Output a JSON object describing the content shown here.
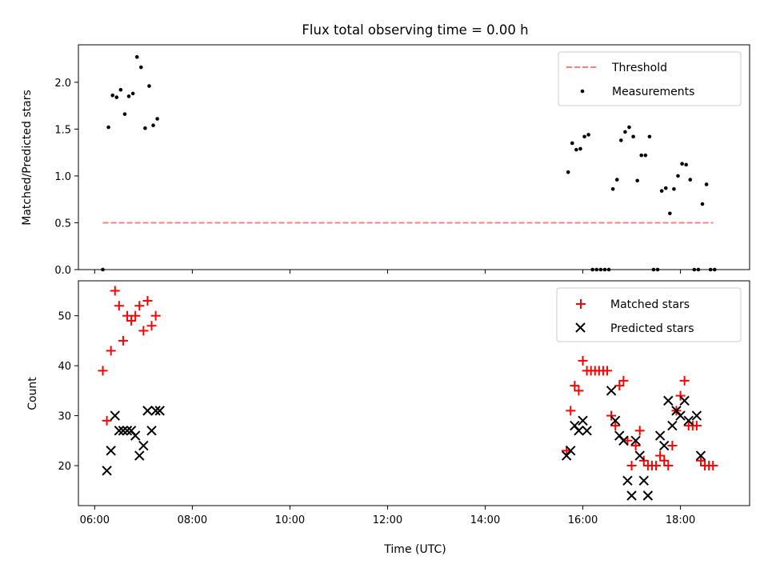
{
  "title": "Flux total observing time = 0.00 h",
  "colors": {
    "threshold": "#ff7f7f",
    "measurements": "#000000",
    "matched": "#ff0000",
    "predicted": "#000000"
  },
  "chart_data": [
    {
      "type": "scatter",
      "title": "Flux total observing time = 0.00 h",
      "xlabel": "",
      "ylabel": "Matched/Predicted stars",
      "xlim": [
        "05:40",
        "19:25"
      ],
      "ylim": [
        0,
        2.4
      ],
      "yticks": [
        0.0,
        0.5,
        1.0,
        1.5,
        2.0
      ],
      "ytick_labels": [
        "0.0",
        "0.5",
        "1.0",
        "1.5",
        "2.0"
      ],
      "legend_position": "top-right",
      "series": [
        {
          "name": "Threshold",
          "style": "dashed-line",
          "points": [
            [
              "06:10",
              0.5
            ],
            [
              "18:40",
              0.5
            ]
          ]
        },
        {
          "name": "Measurements",
          "style": "dot",
          "points": [
            [
              "06:10",
              0.0
            ],
            [
              "06:17",
              1.52
            ],
            [
              "06:22",
              1.86
            ],
            [
              "06:27",
              1.84
            ],
            [
              "06:32",
              1.92
            ],
            [
              "06:37",
              1.66
            ],
            [
              "06:42",
              1.85
            ],
            [
              "06:47",
              1.88
            ],
            [
              "06:52",
              2.27
            ],
            [
              "06:57",
              2.16
            ],
            [
              "07:02",
              1.51
            ],
            [
              "07:07",
              1.96
            ],
            [
              "07:12",
              1.54
            ],
            [
              "07:17",
              1.61
            ],
            [
              "15:42",
              1.04
            ],
            [
              "15:47",
              1.35
            ],
            [
              "15:52",
              1.28
            ],
            [
              "15:57",
              1.29
            ],
            [
              "16:02",
              1.42
            ],
            [
              "16:07",
              1.44
            ],
            [
              "16:12",
              0.0
            ],
            [
              "16:17",
              0.0
            ],
            [
              "16:22",
              0.0
            ],
            [
              "16:27",
              0.0
            ],
            [
              "16:32",
              0.0
            ],
            [
              "16:37",
              0.86
            ],
            [
              "16:42",
              0.96
            ],
            [
              "16:47",
              1.38
            ],
            [
              "16:52",
              1.47
            ],
            [
              "16:57",
              1.52
            ],
            [
              "17:02",
              1.42
            ],
            [
              "17:07",
              0.95
            ],
            [
              "17:12",
              1.22
            ],
            [
              "17:17",
              1.22
            ],
            [
              "17:22",
              1.42
            ],
            [
              "17:27",
              0.0
            ],
            [
              "17:32",
              0.0
            ],
            [
              "17:37",
              0.84
            ],
            [
              "17:42",
              0.87
            ],
            [
              "17:47",
              0.6
            ],
            [
              "17:52",
              0.86
            ],
            [
              "17:57",
              1.0
            ],
            [
              "18:02",
              1.13
            ],
            [
              "18:07",
              1.12
            ],
            [
              "18:12",
              0.96
            ],
            [
              "18:17",
              0.0
            ],
            [
              "18:22",
              0.0
            ],
            [
              "18:27",
              0.7
            ],
            [
              "18:32",
              0.91
            ],
            [
              "18:37",
              0.0
            ],
            [
              "18:42",
              0.0
            ]
          ]
        }
      ]
    },
    {
      "type": "scatter",
      "title": "",
      "xlabel": "Time (UTC)",
      "ylabel": "Count",
      "xlim": [
        "05:40",
        "19:25"
      ],
      "ylim": [
        12,
        57
      ],
      "xticks": [
        "06:00",
        "08:00",
        "10:00",
        "12:00",
        "14:00",
        "16:00",
        "18:00"
      ],
      "yticks": [
        20,
        30,
        40,
        50
      ],
      "ytick_labels": [
        "20",
        "30",
        "40",
        "50"
      ],
      "legend_position": "top-right",
      "series": [
        {
          "name": "Matched stars",
          "style": "plus",
          "points": [
            [
              "06:10",
              39
            ],
            [
              "06:15",
              29
            ],
            [
              "06:20",
              43
            ],
            [
              "06:25",
              55
            ],
            [
              "06:30",
              52
            ],
            [
              "06:35",
              45
            ],
            [
              "06:40",
              50
            ],
            [
              "06:45",
              49
            ],
            [
              "06:50",
              50
            ],
            [
              "06:55",
              52
            ],
            [
              "07:00",
              47
            ],
            [
              "07:05",
              53
            ],
            [
              "07:10",
              48
            ],
            [
              "07:15",
              50
            ],
            [
              "15:40",
              23
            ],
            [
              "15:45",
              31
            ],
            [
              "15:50",
              36
            ],
            [
              "15:55",
              35
            ],
            [
              "16:00",
              41
            ],
            [
              "16:05",
              39
            ],
            [
              "16:10",
              39
            ],
            [
              "16:15",
              39
            ],
            [
              "16:20",
              39
            ],
            [
              "16:25",
              39
            ],
            [
              "16:30",
              39
            ],
            [
              "16:35",
              30
            ],
            [
              "16:40",
              28
            ],
            [
              "16:45",
              36
            ],
            [
              "16:50",
              37
            ],
            [
              "16:55",
              25
            ],
            [
              "17:00",
              20
            ],
            [
              "17:05",
              24
            ],
            [
              "17:10",
              27
            ],
            [
              "17:15",
              21
            ],
            [
              "17:20",
              20
            ],
            [
              "17:25",
              20
            ],
            [
              "17:30",
              20
            ],
            [
              "17:35",
              22
            ],
            [
              "17:40",
              21
            ],
            [
              "17:45",
              20
            ],
            [
              "17:50",
              24
            ],
            [
              "17:55",
              31
            ],
            [
              "18:00",
              34
            ],
            [
              "18:05",
              37
            ],
            [
              "18:10",
              28
            ],
            [
              "18:15",
              28
            ],
            [
              "18:20",
              28
            ],
            [
              "18:25",
              21
            ],
            [
              "18:30",
              20
            ],
            [
              "18:35",
              20
            ],
            [
              "18:40",
              20
            ]
          ]
        },
        {
          "name": "Predicted stars",
          "style": "x",
          "points": [
            [
              "06:15",
              19
            ],
            [
              "06:20",
              23
            ],
            [
              "06:25",
              30
            ],
            [
              "06:30",
              27
            ],
            [
              "06:35",
              27
            ],
            [
              "06:40",
              27
            ],
            [
              "06:45",
              27
            ],
            [
              "06:50",
              26
            ],
            [
              "06:55",
              22
            ],
            [
              "07:00",
              24
            ],
            [
              "07:05",
              31
            ],
            [
              "07:10",
              27
            ],
            [
              "07:15",
              31
            ],
            [
              "07:20",
              31
            ],
            [
              "15:40",
              22
            ],
            [
              "15:45",
              23
            ],
            [
              "15:50",
              28
            ],
            [
              "15:55",
              27
            ],
            [
              "16:00",
              29
            ],
            [
              "16:05",
              27
            ],
            [
              "16:35",
              35
            ],
            [
              "16:40",
              29
            ],
            [
              "16:45",
              26
            ],
            [
              "16:50",
              25
            ],
            [
              "16:55",
              17
            ],
            [
              "17:00",
              14
            ],
            [
              "17:05",
              25
            ],
            [
              "17:10",
              22
            ],
            [
              "17:15",
              17
            ],
            [
              "17:20",
              14
            ],
            [
              "17:35",
              26
            ],
            [
              "17:40",
              24
            ],
            [
              "17:45",
              33
            ],
            [
              "17:50",
              28
            ],
            [
              "17:55",
              31
            ],
            [
              "18:00",
              30
            ],
            [
              "18:05",
              33
            ],
            [
              "18:10",
              29
            ],
            [
              "18:20",
              30
            ],
            [
              "18:25",
              22
            ]
          ]
        }
      ]
    }
  ]
}
